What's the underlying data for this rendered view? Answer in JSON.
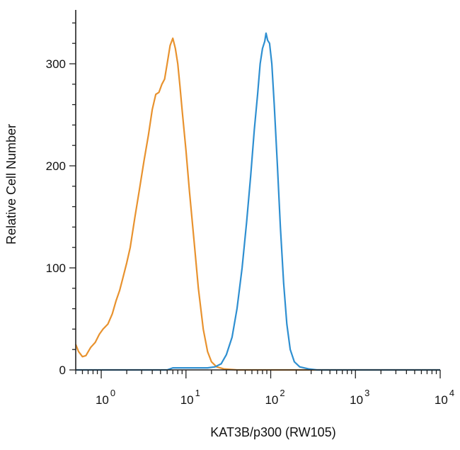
{
  "chart_data": {
    "type": "line",
    "title": "",
    "xlabel": "KAT3B/p300 (RW105)",
    "ylabel": "Relative Cell Number",
    "x_scale": "log",
    "xlim": [
      0.5,
      10000
    ],
    "ylim": [
      0,
      350
    ],
    "grid": false,
    "x_ticks": [
      {
        "base": "10",
        "exp": "0",
        "value": 1
      },
      {
        "base": "10",
        "exp": "1",
        "value": 10
      },
      {
        "base": "10",
        "exp": "2",
        "value": 100
      },
      {
        "base": "10",
        "exp": "3",
        "value": 1000
      },
      {
        "base": "10",
        "exp": "4",
        "value": 10000
      }
    ],
    "y_ticks": [
      {
        "label": "0",
        "value": 0
      },
      {
        "label": "100",
        "value": 100
      },
      {
        "label": "200",
        "value": 200
      },
      {
        "label": "300",
        "value": 300
      }
    ],
    "series": [
      {
        "color": "#e8922e",
        "points": [
          [
            0.5,
            25
          ],
          [
            0.54,
            18
          ],
          [
            0.6,
            13
          ],
          [
            0.66,
            14
          ],
          [
            0.75,
            22
          ],
          [
            0.85,
            27
          ],
          [
            0.95,
            35
          ],
          [
            1.05,
            40
          ],
          [
            1.2,
            45
          ],
          [
            1.35,
            55
          ],
          [
            1.5,
            68
          ],
          [
            1.65,
            78
          ],
          [
            1.8,
            90
          ],
          [
            2.0,
            105
          ],
          [
            2.2,
            120
          ],
          [
            2.5,
            150
          ],
          [
            2.8,
            175
          ],
          [
            3.2,
            205
          ],
          [
            3.6,
            230
          ],
          [
            4.0,
            255
          ],
          [
            4.4,
            270
          ],
          [
            4.8,
            272
          ],
          [
            5.2,
            280
          ],
          [
            5.6,
            285
          ],
          [
            6.0,
            300
          ],
          [
            6.5,
            318
          ],
          [
            7.0,
            325
          ],
          [
            7.5,
            315
          ],
          [
            8.0,
            300
          ],
          [
            8.5,
            278
          ],
          [
            9.0,
            255
          ],
          [
            10.0,
            215
          ],
          [
            11.0,
            175
          ],
          [
            12.5,
            125
          ],
          [
            14.0,
            80
          ],
          [
            16.0,
            40
          ],
          [
            18.0,
            18
          ],
          [
            20.0,
            8
          ],
          [
            23.0,
            3
          ],
          [
            28.0,
            1
          ],
          [
            40.0,
            0
          ],
          [
            10000,
            0
          ]
        ]
      },
      {
        "color": "#2e8fd1",
        "points": [
          [
            0.5,
            0
          ],
          [
            6.0,
            0
          ],
          [
            7.0,
            2
          ],
          [
            12.0,
            2
          ],
          [
            18.0,
            2
          ],
          [
            22.0,
            3
          ],
          [
            26.0,
            6
          ],
          [
            30.0,
            15
          ],
          [
            35.0,
            32
          ],
          [
            40.0,
            60
          ],
          [
            46.0,
            100
          ],
          [
            52.0,
            145
          ],
          [
            58.0,
            190
          ],
          [
            64.0,
            235
          ],
          [
            70.0,
            270
          ],
          [
            75.0,
            300
          ],
          [
            80.0,
            315
          ],
          [
            85.0,
            322
          ],
          [
            88.0,
            330
          ],
          [
            92.0,
            323
          ],
          [
            97.0,
            320
          ],
          [
            103.0,
            300
          ],
          [
            110.0,
            260
          ],
          [
            120.0,
            200
          ],
          [
            130.0,
            140
          ],
          [
            142.0,
            85
          ],
          [
            155.0,
            45
          ],
          [
            170.0,
            20
          ],
          [
            190.0,
            8
          ],
          [
            220.0,
            3
          ],
          [
            280.0,
            1
          ],
          [
            350.0,
            0
          ],
          [
            10000,
            0
          ]
        ]
      }
    ]
  }
}
